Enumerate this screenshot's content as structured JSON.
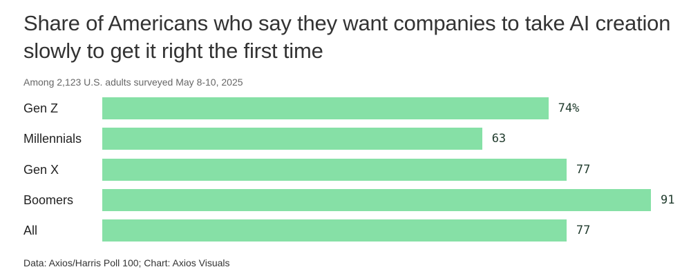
{
  "chart_data": {
    "type": "bar",
    "orientation": "horizontal",
    "title": "Share of Americans who say they want companies to take AI creation slowly to get it right the first time",
    "subtitle": "Among 2,123 U.S. adults surveyed May 8-10, 2025",
    "categories": [
      "Gen Z",
      "Millennials",
      "Gen X",
      "Boomers",
      "All"
    ],
    "values": [
      74,
      63,
      77,
      91,
      77
    ],
    "value_labels": [
      "74%",
      "63",
      "77",
      "91",
      "77"
    ],
    "xlim": [
      0,
      91
    ],
    "xlabel": "",
    "ylabel": "",
    "bar_color": "#86e0a6",
    "source": "Data: Axios/Harris Poll 100; Chart: Axios Visuals"
  }
}
